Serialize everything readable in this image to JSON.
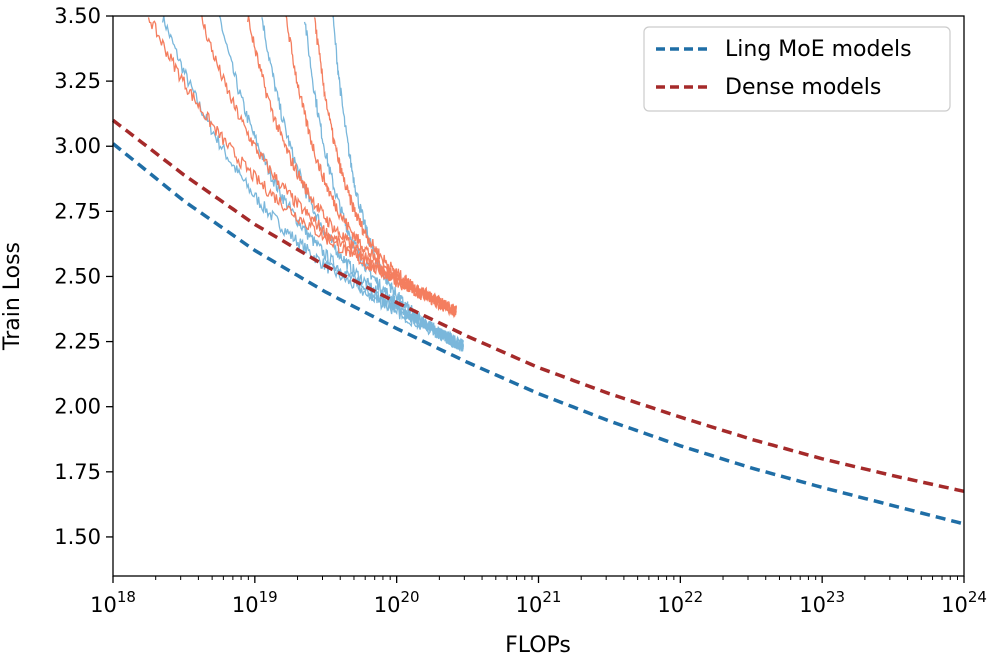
{
  "chart_data": {
    "type": "line",
    "xscale": "log",
    "xlabel": "FLOPs",
    "ylabel": "Train Loss",
    "xlim_exp": [
      18,
      24
    ],
    "ylim": [
      1.35,
      3.5
    ],
    "x_ticks": [
      {
        "base": "10",
        "exp": "18",
        "value": 18
      },
      {
        "base": "10",
        "exp": "19",
        "value": 19
      },
      {
        "base": "10",
        "exp": "20",
        "value": 20
      },
      {
        "base": "10",
        "exp": "21",
        "value": 21
      },
      {
        "base": "10",
        "exp": "22",
        "value": 22
      },
      {
        "base": "10",
        "exp": "23",
        "value": 23
      },
      {
        "base": "10",
        "exp": "24",
        "value": 24
      }
    ],
    "y_ticks": [
      {
        "label": "1.50",
        "value": 1.5
      },
      {
        "label": "1.75",
        "value": 1.75
      },
      {
        "label": "2.00",
        "value": 2.0
      },
      {
        "label": "2.25",
        "value": 2.25
      },
      {
        "label": "2.50",
        "value": 2.5
      },
      {
        "label": "2.75",
        "value": 2.75
      },
      {
        "label": "3.00",
        "value": 3.0
      },
      {
        "label": "3.25",
        "value": 3.25
      },
      {
        "label": "3.50",
        "value": 3.5
      }
    ],
    "legend": [
      {
        "label": "Ling MoE models",
        "color": "#1f6ea6"
      },
      {
        "label": "Dense models",
        "color": "#a52a2a"
      }
    ],
    "fit_curves": [
      {
        "name": "Ling MoE models",
        "color": "#1f6ea6",
        "points": [
          [
            18,
            3.01
          ],
          [
            18.5,
            2.79
          ],
          [
            19,
            2.6
          ],
          [
            19.5,
            2.44
          ],
          [
            20,
            2.3
          ],
          [
            20.5,
            2.17
          ],
          [
            21,
            2.05
          ],
          [
            21.5,
            1.945
          ],
          [
            22,
            1.85
          ],
          [
            22.5,
            1.765
          ],
          [
            23,
            1.69
          ],
          [
            23.5,
            1.62
          ],
          [
            24,
            1.55
          ]
        ]
      },
      {
        "name": "Dense models",
        "color": "#a52a2a",
        "points": [
          [
            18,
            3.1
          ],
          [
            18.5,
            2.89
          ],
          [
            19,
            2.7
          ],
          [
            19.5,
            2.54
          ],
          [
            20,
            2.4
          ],
          [
            20.5,
            2.27
          ],
          [
            21,
            2.15
          ],
          [
            21.5,
            2.05
          ],
          [
            22,
            1.96
          ],
          [
            22.5,
            1.875
          ],
          [
            23,
            1.8
          ],
          [
            23.5,
            1.735
          ],
          [
            24,
            1.675
          ]
        ]
      }
    ],
    "training_runs": [
      {
        "group": "MoE",
        "color": "#7ab7db",
        "start_exp": 18.35,
        "end_exp": 20.47,
        "start_loss": 3.5
      },
      {
        "group": "MoE",
        "color": "#7ab7db",
        "start_exp": 18.75,
        "end_exp": 20.47,
        "start_loss": 3.5
      },
      {
        "group": "MoE",
        "color": "#7ab7db",
        "start_exp": 19.05,
        "end_exp": 20.47,
        "start_loss": 3.5
      },
      {
        "group": "MoE",
        "color": "#7ab7db",
        "start_exp": 19.35,
        "end_exp": 20.47,
        "start_loss": 3.5
      },
      {
        "group": "MoE",
        "color": "#7ab7db",
        "start_exp": 19.55,
        "end_exp": 20.47,
        "start_loss": 3.5
      },
      {
        "group": "Dense",
        "color": "#f47e5f",
        "start_exp": 18.25,
        "end_exp": 20.42,
        "start_loss": 3.5
      },
      {
        "group": "Dense",
        "color": "#f47e5f",
        "start_exp": 18.62,
        "end_exp": 20.42,
        "start_loss": 3.5
      },
      {
        "group": "Dense",
        "color": "#f47e5f",
        "start_exp": 18.95,
        "end_exp": 20.42,
        "start_loss": 3.5
      },
      {
        "group": "Dense",
        "color": "#f47e5f",
        "start_exp": 19.22,
        "end_exp": 20.42,
        "start_loss": 3.5
      },
      {
        "group": "Dense",
        "color": "#f47e5f",
        "start_exp": 19.42,
        "end_exp": 20.42,
        "start_loss": 3.5
      }
    ]
  }
}
